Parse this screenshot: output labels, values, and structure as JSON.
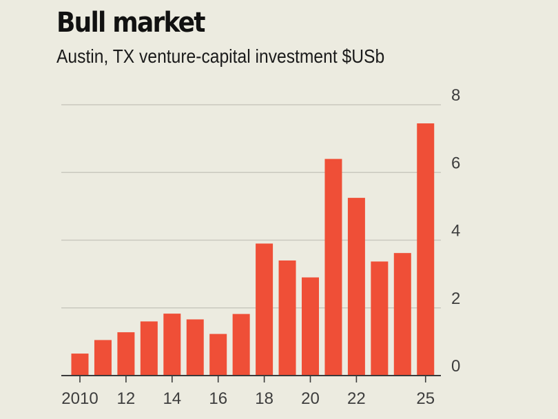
{
  "chart_data": {
    "type": "bar",
    "title": "Bull market",
    "subtitle": "Austin, TX venture-capital investment $USb",
    "xlabel": "",
    "ylabel": "",
    "categories": [
      "2010",
      "2011",
      "2012",
      "2013",
      "2014",
      "2015",
      "2016",
      "2017",
      "2018",
      "2019",
      "2020",
      "2021",
      "2022",
      "2023",
      "2024",
      "2025"
    ],
    "values": [
      0.65,
      1.05,
      1.28,
      1.6,
      1.83,
      1.66,
      1.23,
      1.82,
      3.9,
      3.4,
      2.9,
      6.4,
      5.25,
      3.37,
      3.62,
      7.45
    ],
    "ylim": [
      0,
      8
    ],
    "y_ticks": [
      {
        "value": 0,
        "label": "0"
      },
      {
        "value": 2,
        "label": "2"
      },
      {
        "value": 4,
        "label": "4"
      },
      {
        "value": 6,
        "label": "6"
      },
      {
        "value": 8,
        "label": "8"
      }
    ],
    "x_ticks": [
      {
        "category": "2010",
        "label": "2010"
      },
      {
        "category": "2012",
        "label": "12"
      },
      {
        "category": "2014",
        "label": "14"
      },
      {
        "category": "2016",
        "label": "16"
      },
      {
        "category": "2018",
        "label": "18"
      },
      {
        "category": "2020",
        "label": "20"
      },
      {
        "category": "2022",
        "label": "22"
      },
      {
        "category": "2025",
        "label": "25"
      }
    ],
    "grid": true,
    "y_axis_side": "right",
    "colors": {
      "bar": "#ef4f37",
      "background": "#ecebe0"
    }
  }
}
